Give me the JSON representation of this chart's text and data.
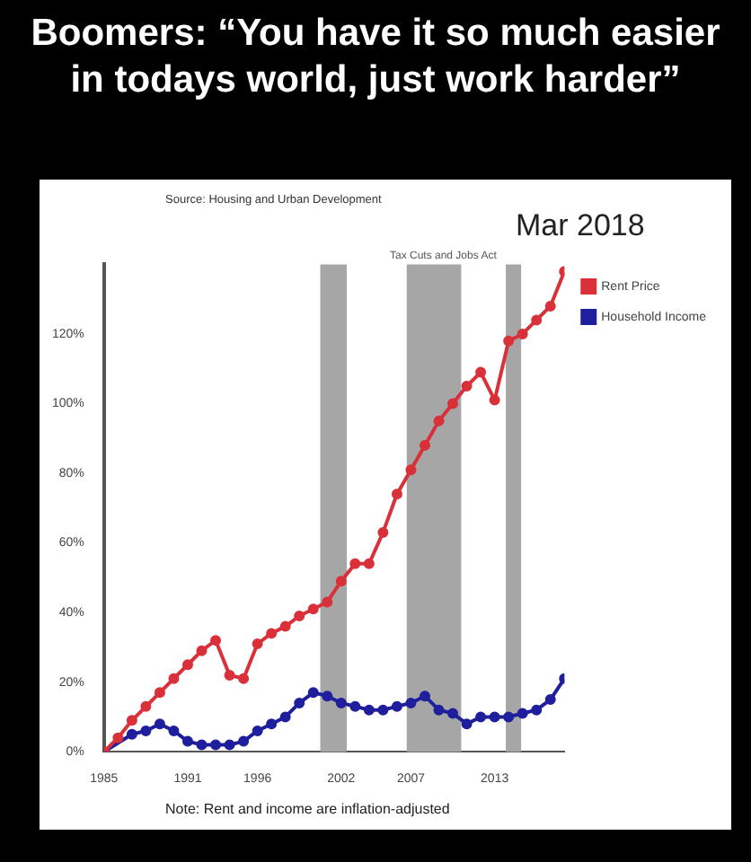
{
  "chart_data": {
    "type": "line",
    "title": "Boomers: “You have it so much easier in todays world, just work harder”",
    "annotations": [
      "Source: Housing and Urban Development",
      "Mar 2018",
      "Tax Cuts and Jobs Act",
      "Note: Rent and income are inflation-adjusted"
    ],
    "x": [
      1985,
      1986,
      1987,
      1988,
      1989,
      1990,
      1991,
      1992,
      1993,
      1994,
      1995,
      1996,
      1997,
      1998,
      1999,
      2000,
      2001,
      2002,
      2003,
      2004,
      2005,
      2006,
      2007,
      2008,
      2009,
      2010,
      2011,
      2012,
      2013,
      2014,
      2015,
      2016,
      2017,
      2018
    ],
    "series": [
      {
        "name": "Rent Price",
        "color": "#d9303a",
        "values": [
          0,
          4,
          9,
          13,
          17,
          21,
          25,
          29,
          32,
          22,
          21,
          31,
          34,
          36,
          39,
          41,
          43,
          49,
          54,
          54,
          63,
          74,
          81,
          88,
          95,
          100,
          105,
          109,
          101,
          118,
          120,
          124,
          128,
          138
        ]
      },
      {
        "name": "Household Income",
        "color": "#1f1f9e",
        "values": [
          0,
          null,
          5,
          6,
          8,
          6,
          3,
          2,
          2,
          2,
          3,
          6,
          8,
          10,
          14,
          17,
          16,
          14,
          13,
          12,
          12,
          13,
          14,
          16,
          12,
          11,
          8,
          10,
          10,
          10,
          11,
          12,
          15,
          21
        ]
      }
    ],
    "xlim": [
      1985,
      2018
    ],
    "xticks": [
      1985,
      1991,
      1996,
      2002,
      2007,
      2013
    ],
    "ylim": [
      0,
      140
    ],
    "yticks": [
      {
        "value": 0,
        "label": "0%"
      },
      {
        "value": 20,
        "label": "20%"
      },
      {
        "value": 40,
        "label": "40%"
      },
      {
        "value": 60,
        "label": "60%"
      },
      {
        "value": 80,
        "label": "80%"
      },
      {
        "value": 100,
        "label": "100%"
      },
      {
        "value": 120,
        "label": "120%"
      }
    ],
    "bands": [
      {
        "axis": "x",
        "from": 2000.5,
        "to": 2002.4,
        "color": "#a6a6a6"
      },
      {
        "axis": "x",
        "from": 2006.7,
        "to": 2010.6,
        "color": "#a6a6a6"
      },
      {
        "axis": "x",
        "from": 2013.8,
        "to": 2014.9,
        "color": "#a6a6a6"
      }
    ],
    "legend": "top right",
    "marker": "circle",
    "line_style": "solid",
    "grid": false
  }
}
